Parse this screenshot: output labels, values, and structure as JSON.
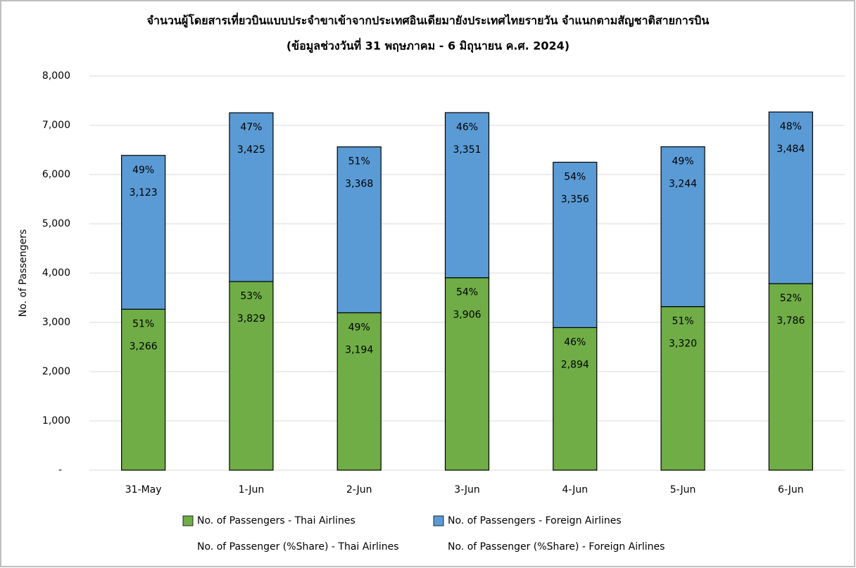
{
  "chart_data": {
    "type": "bar",
    "stacked": true,
    "title": "จำนวนผู้โดยสารเที่ยวบินแบบประจำขาเข้าจากประเทศอินเดียมายังประเทศไทยรายวัน  จำแนกตามสัญชาติสายการบิน",
    "subtitle": "(ข้อมูลช่วงวันที่ 31 พฤษภาคม - 6 มิถุนายน ค.ศ. 2024)",
    "y_label": "No. of Passengers",
    "categories": [
      "31-May",
      "1-Jun",
      "2-Jun",
      "3-Jun",
      "4-Jun",
      "5-Jun",
      "6-Jun"
    ],
    "series": [
      {
        "name": "No. of Passengers - Thai Airlines",
        "color": "#70ad47",
        "values": [
          3266,
          3829,
          3194,
          3906,
          2894,
          3320,
          3786
        ],
        "value_labels": [
          "3,266",
          "3,829",
          "3,194",
          "3,906",
          "2,894",
          "3,320",
          "3,786"
        ]
      },
      {
        "name": "No. of Passengers - Foreign Airlines",
        "color": "#5b9bd5",
        "values": [
          3123,
          3425,
          3368,
          3351,
          3356,
          3244,
          3484
        ],
        "value_labels": [
          "3,123",
          "3,425",
          "3,368",
          "3,351",
          "3,356",
          "3,244",
          "3,484"
        ]
      },
      {
        "name": "No. of Passenger (%Share) - Thai Airlines",
        "values": [
          51,
          53,
          49,
          54,
          46,
          51,
          52
        ],
        "value_labels": [
          "51%",
          "53%",
          "49%",
          "54%",
          "46%",
          "51%",
          "52%"
        ]
      },
      {
        "name": "No. of Passenger (%Share) - Foreign Airlines",
        "values": [
          49,
          47,
          51,
          46,
          54,
          49,
          48
        ],
        "value_labels": [
          "49%",
          "47%",
          "51%",
          "46%",
          "54%",
          "49%",
          "48%"
        ]
      }
    ],
    "ylim": [
      0,
      8000
    ],
    "yticks": [
      {
        "value": 0,
        "label": "-"
      },
      {
        "value": 1000,
        "label": "1,000"
      },
      {
        "value": 2000,
        "label": "2,000"
      },
      {
        "value": 3000,
        "label": "3,000"
      },
      {
        "value": 4000,
        "label": "4,000"
      },
      {
        "value": 5000,
        "label": "5,000"
      },
      {
        "value": 6000,
        "label": "6,000"
      },
      {
        "value": 7000,
        "label": "7,000"
      },
      {
        "value": 8000,
        "label": "8,000"
      }
    ],
    "grid": true
  }
}
